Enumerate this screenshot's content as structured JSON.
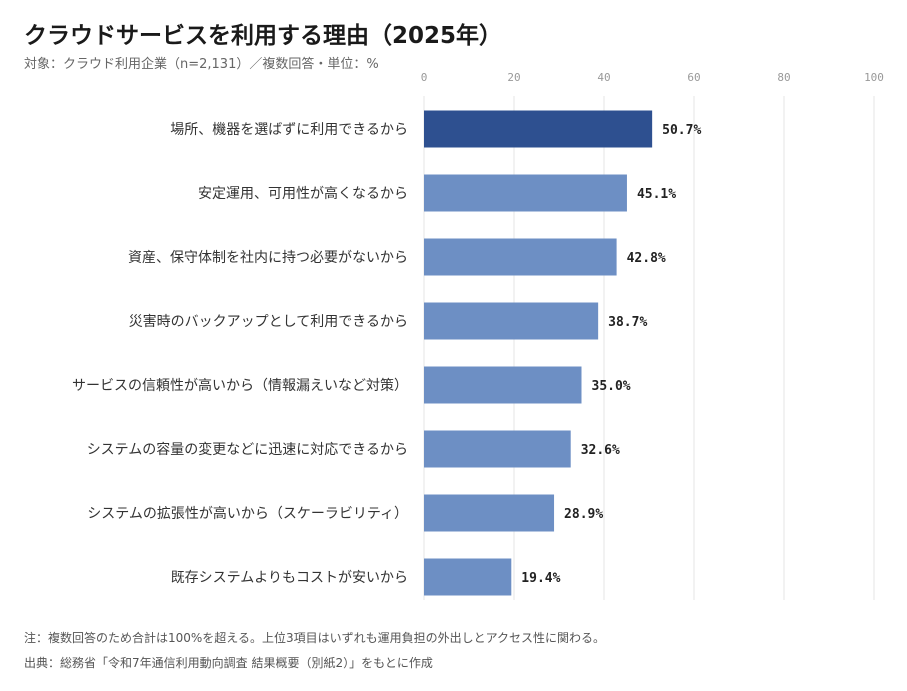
{
  "header": {
    "title": "クラウドサービスを利用する理由（2025年）",
    "subtitle": "対象：クラウド利用企業（n=2,131）／複数回答・単位：%"
  },
  "footer": {
    "note": "注：複数回答のため合計は100%を超える。上位3項目はいずれも運用負担の外出しとアクセス性に関わる。",
    "source": "出典：総務省「令和7年通信利用動向調査 結果概要（別紙2）」をもとに作成"
  },
  "chart_data": {
    "type": "bar",
    "orientation": "horizontal",
    "title": "クラウドサービスを利用する理由（2025年）",
    "xlabel": "",
    "ylabel": "",
    "xlim": [
      0,
      100
    ],
    "x_ticks": [
      0,
      20,
      40,
      60,
      80,
      100
    ],
    "grid": "vertical",
    "categories": [
      "場所、機器を選ばずに利用できるから",
      "安定運用、可用性が高くなるから",
      "資産、保守体制を社内に持つ必要がないから",
      "災害時のバックアップとして利用できるから",
      "サービスの信頼性が高いから（情報漏えいなど対策）",
      "システムの容量の変更などに迅速に対応できるから",
      "システムの拡張性が高いから（スケーラビリティ）",
      "既存システムよりもコストが安いから"
    ],
    "values": [
      50.7,
      45.1,
      42.8,
      38.7,
      35.0,
      32.6,
      28.9,
      19.4
    ],
    "value_labels": [
      "50.7%",
      "45.1%",
      "42.8%",
      "38.7%",
      "35.0%",
      "32.6%",
      "28.9%",
      "19.4%"
    ],
    "colors": {
      "highlight": "#2e5090",
      "bar": "#6d8fc4",
      "grid": "#e6e6e6",
      "tick": "#999999"
    }
  }
}
